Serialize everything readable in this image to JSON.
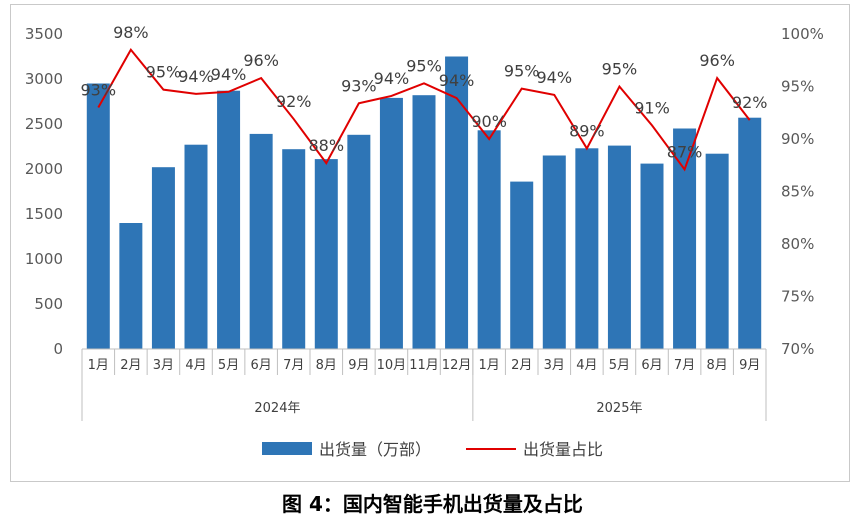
{
  "caption": "图 4：国内智能手机出货量及占比",
  "chart_data": {
    "type": "bar",
    "categories": [
      "1月",
      "2月",
      "3月",
      "4月",
      "5月",
      "6月",
      "7月",
      "8月",
      "9月",
      "10月",
      "11月",
      "12月",
      "1月",
      "2月",
      "3月",
      "4月",
      "5月",
      "6月",
      "7月",
      "8月",
      "9月"
    ],
    "groups": [
      {
        "label": "2024年",
        "count": 12
      },
      {
        "label": "2025年",
        "count": 9
      }
    ],
    "series": [
      {
        "name": "出货量（万部）",
        "type": "bar",
        "axis": "left",
        "color": "#2e75b6",
        "values": [
          2950,
          1400,
          2020,
          2270,
          2870,
          2390,
          2220,
          2110,
          2380,
          2790,
          2820,
          3250,
          2430,
          1860,
          2150,
          2230,
          2260,
          2060,
          2450,
          2170,
          2570
        ]
      },
      {
        "name": "出货量占比",
        "type": "line",
        "axis": "right",
        "color": "#e00000",
        "values": [
          93,
          98.5,
          94.7,
          94.3,
          94.5,
          95.8,
          91.9,
          87.7,
          93.4,
          94.1,
          95.3,
          93.9,
          90.0,
          94.8,
          94.2,
          89.1,
          95.0,
          91.3,
          87.1,
          95.8,
          91.8
        ],
        "labels": [
          "93%",
          "98%",
          "95%",
          "94%",
          "94%",
          "96%",
          "92%",
          "88%",
          "93%",
          "94%",
          "95%",
          "94%",
          "90%",
          "95%",
          "94%",
          "89%",
          "95%",
          "91%",
          "87%",
          "96%",
          "92%"
        ]
      }
    ],
    "y_left": {
      "min": 0,
      "max": 3500,
      "step": 500,
      "ticks": [
        "0",
        "500",
        "1000",
        "1500",
        "2000",
        "2500",
        "3000",
        "3500"
      ]
    },
    "y_right": {
      "min": 70,
      "max": 100,
      "step": 5,
      "ticks": [
        "70%",
        "75%",
        "80%",
        "85%",
        "90%",
        "95%",
        "100%"
      ]
    },
    "grid": false,
    "legend_position": "bottom"
  }
}
